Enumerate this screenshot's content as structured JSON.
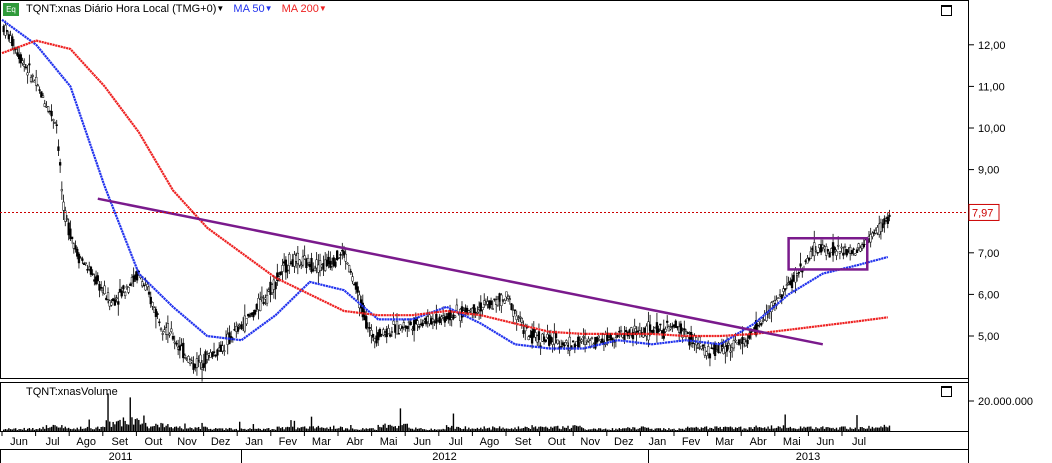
{
  "header": {
    "badge": "Eq",
    "symbol_label": "TQNT:xnas Diário Hora Local (TMG+0)",
    "ma50_label": "MA 50",
    "ma200_label": "MA 200"
  },
  "volume_panel": {
    "title": "TQNT:xnasVolume",
    "tick_label": "20.000.000"
  },
  "colors": {
    "ma50": "#2233ee",
    "ma200": "#ee2222",
    "trendline": "#7a1a8c",
    "price_marker": "#cc0000",
    "candles": "#000000"
  },
  "chart_data": {
    "type": "line",
    "yaxis": {
      "min": 4.0,
      "max": 12.8,
      "ticks": [
        "5,00",
        "6,00",
        "7,00",
        "8,00",
        "9,00",
        "10,00",
        "11,00",
        "12,00"
      ],
      "tick_values": [
        5,
        6,
        7,
        8,
        9,
        10,
        11,
        12
      ]
    },
    "last_price_label": "7,97",
    "last_price": 7.97,
    "months": [
      "Jun",
      "Jul",
      "Ago",
      "Set",
      "Out",
      "Nov",
      "Dez",
      "Jan",
      "Fev",
      "Mar",
      "Abr",
      "Mai",
      "Jun",
      "Jul",
      "Ago",
      "Set",
      "Out",
      "Nov",
      "Dez",
      "Jan",
      "Fev",
      "Mar",
      "Abr",
      "Mai",
      "Jun",
      "Jul"
    ],
    "years": [
      "2011",
      "2012",
      "2013"
    ],
    "price_close": [
      12.5,
      11.2,
      10.1,
      8.0,
      7.0,
      5.8,
      6.5,
      5.4,
      4.3,
      4.7,
      5.6,
      6.8,
      6.7,
      7.0,
      5.0,
      5.3,
      5.5,
      5.9,
      5.0,
      4.8,
      5.1,
      5.2,
      4.6,
      4.9,
      6.0,
      7.1,
      7.0,
      7.9
    ],
    "price_x_months": [
      0,
      0.9,
      1.6,
      1.8,
      2.2,
      3.2,
      4.0,
      4.6,
      5.6,
      6.4,
      7.4,
      8.4,
      9.4,
      10.0,
      10.8,
      12.0,
      13.2,
      14.8,
      15.4,
      16.6,
      18.6,
      19.8,
      20.6,
      21.8,
      22.8,
      23.8,
      25.0,
      26.0
    ],
    "series": [
      {
        "name": "MA 50",
        "x_months": [
          0,
          1.0,
          2.0,
          3.0,
          4.0,
          5.0,
          6.0,
          7.0,
          8.0,
          9.0,
          10.0,
          11.0,
          12.0,
          13.0,
          14.0,
          15.0,
          16.0,
          17.0,
          18.0,
          19.0,
          20.0,
          21.0,
          22.0,
          23.0,
          24.0,
          25.0,
          25.9
        ],
        "values": [
          12.6,
          12.0,
          11.0,
          8.6,
          6.5,
          5.7,
          5.0,
          4.9,
          5.5,
          6.3,
          6.1,
          5.4,
          5.4,
          5.7,
          5.3,
          4.8,
          4.7,
          4.7,
          4.9,
          4.8,
          4.9,
          4.8,
          5.3,
          6.0,
          6.5,
          6.7,
          6.9
        ]
      },
      {
        "name": "MA 200",
        "x_months": [
          0,
          1.0,
          2.0,
          3.0,
          4.0,
          5.0,
          6.0,
          7.0,
          8.0,
          9.0,
          10.0,
          11.0,
          12.0,
          13.0,
          14.0,
          15.0,
          16.0,
          17.0,
          18.0,
          19.0,
          20.0,
          21.0,
          22.0,
          23.0,
          24.0,
          25.0,
          25.9
        ],
        "values": [
          11.8,
          12.1,
          11.9,
          11.0,
          9.9,
          8.5,
          7.6,
          7.0,
          6.4,
          6.0,
          5.6,
          5.5,
          5.5,
          5.6,
          5.5,
          5.3,
          5.1,
          5.05,
          5.05,
          5.05,
          5.0,
          5.0,
          5.05,
          5.15,
          5.25,
          5.35,
          5.45
        ]
      },
      {
        "name": "Trendline",
        "x_months": [
          2.8,
          24.0
        ],
        "values": [
          8.3,
          4.8
        ]
      },
      {
        "name": "Consolidation box",
        "x_months": [
          23.0,
          25.3
        ],
        "values": [
          6.6,
          7.35
        ]
      }
    ],
    "volume": [
      2,
      4,
      3,
      9,
      6,
      3,
      2,
      2,
      3,
      4,
      2,
      5,
      2,
      4,
      3,
      3,
      4,
      2,
      3,
      2,
      3,
      3,
      4,
      3,
      3,
      4
    ],
    "volume_max": 24000000,
    "grid": false,
    "legend": "top-left"
  }
}
